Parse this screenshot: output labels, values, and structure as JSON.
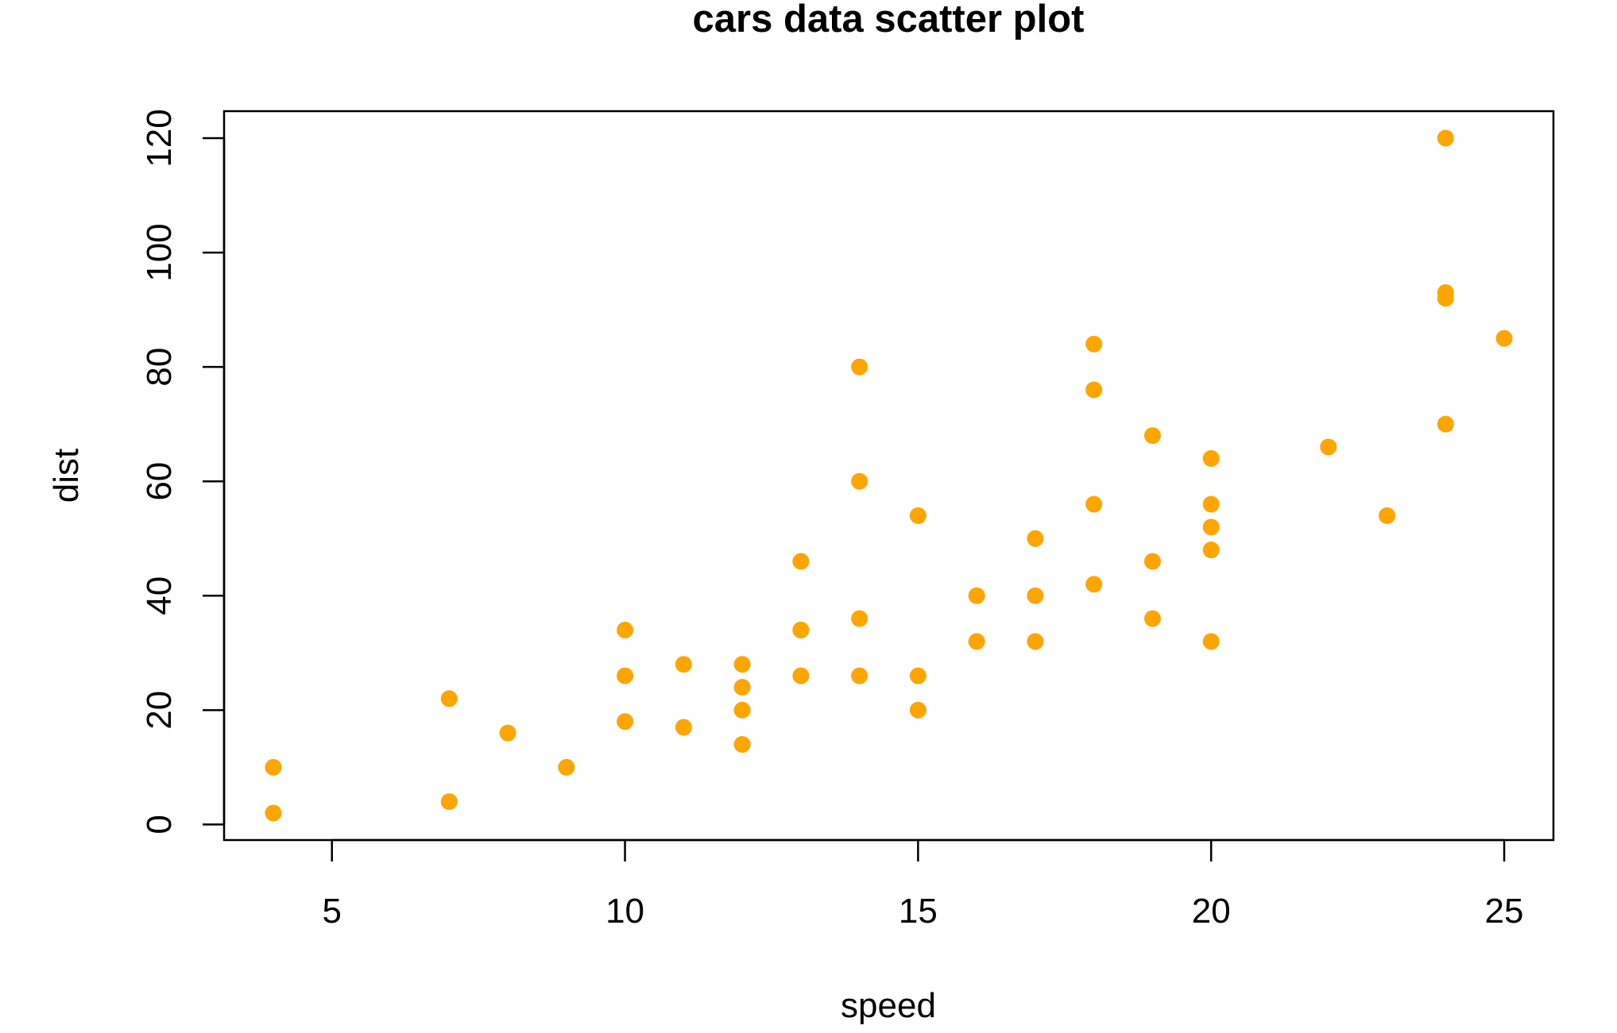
{
  "chart_data": {
    "type": "scatter",
    "title": "cars data scatter plot",
    "xlabel": "speed",
    "ylabel": "dist",
    "xlim": [
      3.16,
      25.84
    ],
    "ylim": [
      -2.72,
      124.72
    ],
    "x_ticks": [
      5,
      10,
      15,
      20,
      25
    ],
    "y_ticks": [
      0,
      20,
      40,
      60,
      80,
      100,
      120
    ],
    "point_color": "#FFA500",
    "grid": false,
    "legend": "none",
    "x": [
      4,
      4,
      7,
      7,
      8,
      9,
      10,
      10,
      10,
      11,
      11,
      12,
      12,
      12,
      12,
      13,
      13,
      13,
      13,
      14,
      14,
      14,
      14,
      15,
      15,
      15,
      16,
      16,
      17,
      17,
      17,
      18,
      18,
      18,
      18,
      19,
      19,
      19,
      20,
      20,
      20,
      20,
      20,
      22,
      23,
      24,
      24,
      24,
      24,
      25
    ],
    "y": [
      2,
      10,
      4,
      22,
      16,
      10,
      18,
      26,
      34,
      17,
      28,
      14,
      20,
      24,
      28,
      26,
      34,
      34,
      46,
      26,
      36,
      60,
      80,
      20,
      26,
      54,
      32,
      40,
      32,
      40,
      50,
      42,
      56,
      76,
      84,
      36,
      46,
      68,
      32,
      48,
      52,
      56,
      64,
      66,
      54,
      70,
      92,
      93,
      120,
      85
    ]
  }
}
